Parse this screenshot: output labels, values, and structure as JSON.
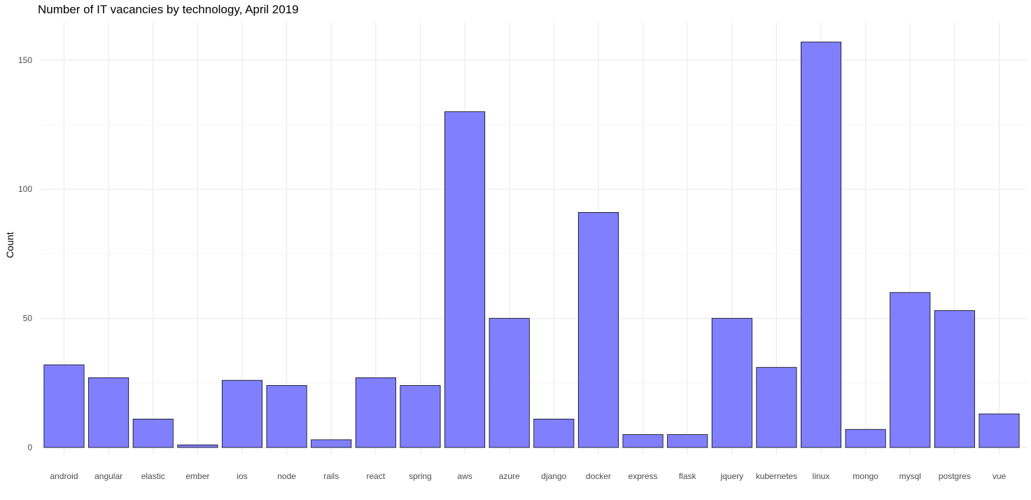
{
  "chart_data": {
    "type": "bar",
    "title": "Number of IT vacancies by technology, April 2019",
    "xlabel": "",
    "ylabel": "Count",
    "categories": [
      "android",
      "angular",
      "elastic",
      "ember",
      "ios",
      "node",
      "rails",
      "react",
      "spring",
      "aws",
      "azure",
      "django",
      "docker",
      "express",
      "flask",
      "jquery",
      "kubernetes",
      "linux",
      "mongo",
      "mysql",
      "postgres",
      "vue"
    ],
    "values": [
      32,
      27,
      11,
      1,
      26,
      24,
      3,
      27,
      24,
      130,
      50,
      11,
      91,
      5,
      5,
      50,
      31,
      157,
      7,
      60,
      53,
      13
    ],
    "ylim": [
      0,
      157
    ],
    "yticks": [
      0,
      50,
      100,
      150
    ],
    "grid": true,
    "bar_color": "#8080ff",
    "bar_edge_color": "#000000",
    "gridline_color": "#ebebeb"
  }
}
